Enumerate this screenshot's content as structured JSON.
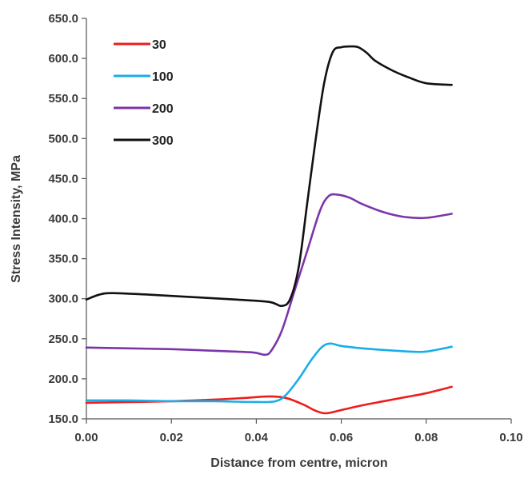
{
  "chart_data": {
    "type": "line",
    "title": "",
    "xlabel": "Distance from centre, micron",
    "ylabel": "Stress Intensity, MPa",
    "xlim": [
      0.0,
      0.1
    ],
    "ylim": [
      150.0,
      650.0
    ],
    "x_ticks": [
      "0.00",
      "0.02",
      "0.04",
      "0.06",
      "0.08",
      "0.10"
    ],
    "y_ticks": [
      "150.0",
      "200.0",
      "250.0",
      "300.0",
      "350.0",
      "400.0",
      "450.0",
      "500.0",
      "550.0",
      "600.0",
      "650.0"
    ],
    "x_tick_values": [
      0.0,
      0.02,
      0.04,
      0.06,
      0.08,
      0.1
    ],
    "y_tick_values": [
      150,
      200,
      250,
      300,
      350,
      400,
      450,
      500,
      550,
      600,
      650
    ],
    "grid": false,
    "legend_position": "top-left",
    "series": [
      {
        "name": "30",
        "color": "#ee1c1c",
        "points": [
          [
            0.0,
            170
          ],
          [
            0.01,
            171
          ],
          [
            0.02,
            172
          ],
          [
            0.03,
            174
          ],
          [
            0.037,
            176
          ],
          [
            0.043,
            178
          ],
          [
            0.047,
            176
          ],
          [
            0.051,
            168
          ],
          [
            0.054,
            160
          ],
          [
            0.0565,
            157
          ],
          [
            0.06,
            161
          ],
          [
            0.065,
            167
          ],
          [
            0.07,
            172
          ],
          [
            0.075,
            177
          ],
          [
            0.08,
            182
          ],
          [
            0.086,
            190
          ]
        ]
      },
      {
        "name": "100",
        "color": "#19aee8",
        "points": [
          [
            0.0,
            173
          ],
          [
            0.01,
            173
          ],
          [
            0.02,
            172
          ],
          [
            0.03,
            172
          ],
          [
            0.04,
            171
          ],
          [
            0.0445,
            172
          ],
          [
            0.047,
            180
          ],
          [
            0.05,
            200
          ],
          [
            0.053,
            224
          ],
          [
            0.0555,
            240
          ],
          [
            0.0575,
            244
          ],
          [
            0.06,
            241
          ],
          [
            0.065,
            238
          ],
          [
            0.07,
            236
          ],
          [
            0.076,
            234
          ],
          [
            0.08,
            234
          ],
          [
            0.086,
            240
          ]
        ]
      },
      {
        "name": "200",
        "color": "#7b35a8",
        "points": [
          [
            0.0,
            239
          ],
          [
            0.01,
            238
          ],
          [
            0.02,
            237
          ],
          [
            0.03,
            235
          ],
          [
            0.039,
            233
          ],
          [
            0.042,
            230
          ],
          [
            0.0435,
            235
          ],
          [
            0.046,
            260
          ],
          [
            0.049,
            310
          ],
          [
            0.052,
            360
          ],
          [
            0.055,
            410
          ],
          [
            0.057,
            428
          ],
          [
            0.059,
            430
          ],
          [
            0.062,
            426
          ],
          [
            0.065,
            418
          ],
          [
            0.07,
            408
          ],
          [
            0.075,
            402
          ],
          [
            0.08,
            401
          ],
          [
            0.086,
            406
          ]
        ]
      },
      {
        "name": "300",
        "color": "#111111",
        "points": [
          [
            0.0,
            299
          ],
          [
            0.003,
            305
          ],
          [
            0.006,
            307
          ],
          [
            0.015,
            305
          ],
          [
            0.025,
            302
          ],
          [
            0.035,
            299
          ],
          [
            0.043,
            296
          ],
          [
            0.046,
            291
          ],
          [
            0.048,
            300
          ],
          [
            0.05,
            340
          ],
          [
            0.052,
            420
          ],
          [
            0.054,
            500
          ],
          [
            0.056,
            570
          ],
          [
            0.058,
            608
          ],
          [
            0.06,
            614
          ],
          [
            0.0625,
            615
          ],
          [
            0.064,
            614
          ],
          [
            0.066,
            607
          ],
          [
            0.068,
            597
          ],
          [
            0.072,
            585
          ],
          [
            0.076,
            576
          ],
          [
            0.08,
            569
          ],
          [
            0.086,
            567
          ]
        ]
      }
    ]
  }
}
